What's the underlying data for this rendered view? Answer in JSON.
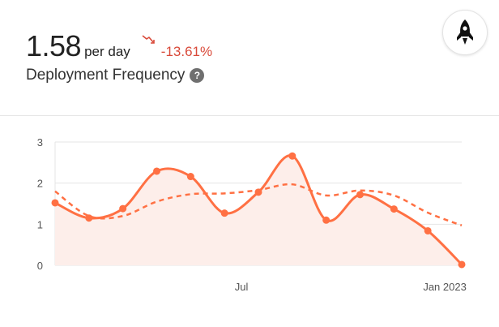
{
  "header": {
    "value": "1.58",
    "unit": "per day",
    "change": "-13.61%",
    "label": "Deployment Frequency",
    "help": "?"
  },
  "icons": {
    "trend": "trend-down-icon",
    "help": "help-circle-icon",
    "badge": "rocket-icon"
  },
  "colors": {
    "accent": "#ff7043",
    "negative": "#d94a3a",
    "area_fill": "#fdeeea"
  },
  "chart_data": {
    "type": "line",
    "title": "",
    "xlabel": "",
    "ylabel": "",
    "ylim": [
      0,
      3
    ],
    "y_ticks": [
      "0",
      "1",
      "2",
      "3"
    ],
    "x_ticks": [
      {
        "label": "Jul",
        "index": 5.5
      },
      {
        "label": "Jan 2023",
        "index": 11.5
      }
    ],
    "grid": true,
    "legend": "none",
    "series": [
      {
        "style": "solid-area",
        "values": [
          1.52,
          1.15,
          1.38,
          2.29,
          2.16,
          1.27,
          1.78,
          2.66,
          1.1,
          1.72,
          1.37,
          0.84,
          0.02
        ]
      },
      {
        "style": "dashed",
        "values": [
          1.8,
          1.2,
          1.2,
          1.55,
          1.73,
          1.75,
          1.83,
          1.97,
          1.7,
          1.82,
          1.7,
          1.28,
          0.97
        ]
      }
    ]
  }
}
